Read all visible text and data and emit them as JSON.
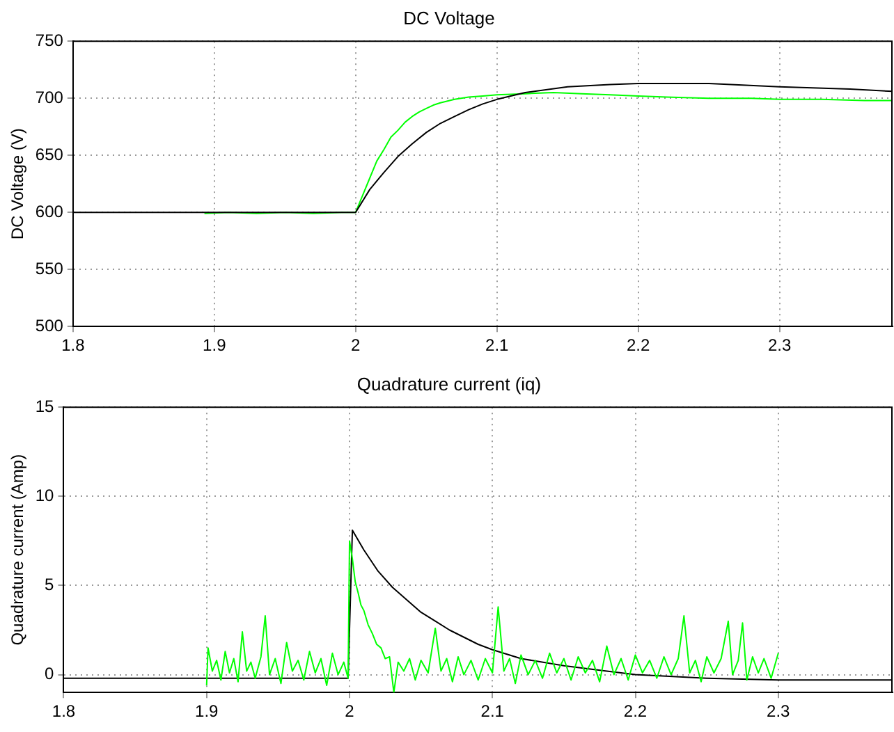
{
  "chart_data": [
    {
      "type": "line",
      "title": "DC Voltage",
      "ylabel": "DC Voltage (V)",
      "xlim": [
        1.8,
        2.38
      ],
      "xticks": [
        1.8,
        1.9,
        2,
        2.1,
        2.2,
        2.3
      ],
      "ylim": [
        500,
        750
      ],
      "yticks": [
        500,
        550,
        600,
        650,
        700,
        750
      ],
      "grid": true,
      "series": [
        {
          "color": "#000000",
          "x": [
            1.8,
            1.9,
            2.0,
            2.01,
            2.02,
            2.03,
            2.04,
            2.05,
            2.06,
            2.07,
            2.08,
            2.09,
            2.1,
            2.12,
            2.15,
            2.18,
            2.2,
            2.25,
            2.3,
            2.35,
            2.38
          ],
          "values": [
            600,
            600,
            600,
            620,
            635,
            649,
            660,
            670,
            678,
            684,
            690,
            695,
            699,
            705,
            710,
            712,
            713,
            713,
            710,
            708,
            706
          ]
        },
        {
          "color": "#00ff00",
          "x": [
            1.893,
            1.91,
            1.93,
            1.95,
            1.97,
            1.99,
            2.0,
            2.005,
            2.01,
            2.015,
            2.02,
            2.025,
            2.03,
            2.035,
            2.04,
            2.045,
            2.05,
            2.055,
            2.06,
            2.07,
            2.08,
            2.09,
            2.1,
            2.12,
            2.14,
            2.16,
            2.18,
            2.2,
            2.22,
            2.25,
            2.28,
            2.3,
            2.33,
            2.36,
            2.38
          ],
          "values": [
            599,
            600,
            599,
            600,
            599,
            600,
            600,
            615,
            630,
            645,
            655,
            666,
            672,
            679,
            684,
            688,
            691,
            694,
            696,
            699,
            701,
            702,
            703,
            704,
            705,
            704,
            703,
            702,
            701,
            700,
            700,
            699,
            699,
            698,
            698
          ]
        }
      ]
    },
    {
      "type": "line",
      "title": "Quadrature current (iq)",
      "ylabel": "Quadrature current (Amp)",
      "xlim": [
        1.8,
        2.38
      ],
      "xticks": [
        1.8,
        1.9,
        2,
        2.1,
        2.2,
        2.3
      ],
      "ylim": [
        -1,
        15
      ],
      "yticks": [
        0,
        5,
        10,
        15
      ],
      "grid": true,
      "series": [
        {
          "color": "#00ff00",
          "x": [
            1.9,
            1.901,
            1.904,
            1.907,
            1.91,
            1.913,
            1.916,
            1.919,
            1.922,
            1.925,
            1.928,
            1.931,
            1.934,
            1.938,
            1.941,
            1.944,
            1.948,
            1.952,
            1.956,
            1.96,
            1.964,
            1.968,
            1.972,
            1.976,
            1.98,
            1.984,
            1.988,
            1.992,
            1.996,
            1.999,
            2.0,
            2.002,
            2.004,
            2.006,
            2.008,
            2.01,
            2.013,
            2.016,
            2.019,
            2.022,
            2.025,
            2.028,
            2.031,
            2.034,
            2.038,
            2.042,
            2.046,
            2.05,
            2.055,
            2.06,
            2.064,
            2.068,
            2.072,
            2.076,
            2.08,
            2.085,
            2.09,
            2.095,
            2.1,
            2.104,
            2.108,
            2.112,
            2.116,
            2.12,
            2.125,
            2.13,
            2.135,
            2.14,
            2.145,
            2.15,
            2.155,
            2.16,
            2.165,
            2.17,
            2.175,
            2.18,
            2.185,
            2.19,
            2.195,
            2.2,
            2.205,
            2.21,
            2.215,
            2.22,
            2.225,
            2.23,
            2.234,
            2.238,
            2.242,
            2.246,
            2.25,
            2.255,
            2.26,
            2.265,
            2.268,
            2.272,
            2.275,
            2.278,
            2.282,
            2.286,
            2.29,
            2.295,
            2.3
          ],
          "values": [
            -0.6,
            1.5,
            0.2,
            0.8,
            -0.3,
            1.3,
            0.1,
            0.9,
            -0.4,
            2.4,
            0.2,
            0.7,
            -0.2,
            1.0,
            3.3,
            0.0,
            0.9,
            -0.5,
            1.8,
            0.2,
            0.8,
            -0.3,
            1.3,
            0.1,
            0.9,
            -0.6,
            1.2,
            0.0,
            0.7,
            -0.2,
            7.5,
            6.5,
            5.2,
            4.6,
            3.9,
            3.6,
            2.8,
            2.3,
            1.7,
            1.5,
            0.9,
            1.0,
            -1.0,
            0.7,
            0.2,
            0.9,
            -0.3,
            0.8,
            0.1,
            2.6,
            0.2,
            0.9,
            -0.4,
            1.0,
            0.0,
            0.8,
            -0.3,
            0.9,
            0.1,
            3.8,
            0.2,
            0.9,
            -0.5,
            1.1,
            0.0,
            0.8,
            -0.2,
            1.2,
            0.1,
            0.9,
            -0.3,
            1.0,
            0.1,
            0.8,
            -0.4,
            1.6,
            0.0,
            0.9,
            -0.3,
            1.1,
            0.1,
            0.8,
            -0.2,
            1.0,
            0.0,
            0.9,
            3.3,
            0.1,
            0.8,
            -0.4,
            1.0,
            0.1,
            0.9,
            3.0,
            0.0,
            0.8,
            2.9,
            -0.3,
            1.0,
            0.1,
            0.9,
            -0.2,
            1.2
          ]
        },
        {
          "color": "#000000",
          "x": [
            1.8,
            1.9,
            1.999,
            2.002,
            2.01,
            2.02,
            2.03,
            2.04,
            2.05,
            2.06,
            2.07,
            2.08,
            2.09,
            2.1,
            2.12,
            2.15,
            2.18,
            2.2,
            2.25,
            2.3,
            2.38
          ],
          "values": [
            -0.2,
            -0.2,
            -0.2,
            8.1,
            7.0,
            5.8,
            4.9,
            4.2,
            3.5,
            3.0,
            2.5,
            2.1,
            1.7,
            1.4,
            0.9,
            0.5,
            0.2,
            0.0,
            -0.2,
            -0.3,
            -0.3
          ]
        }
      ]
    }
  ]
}
